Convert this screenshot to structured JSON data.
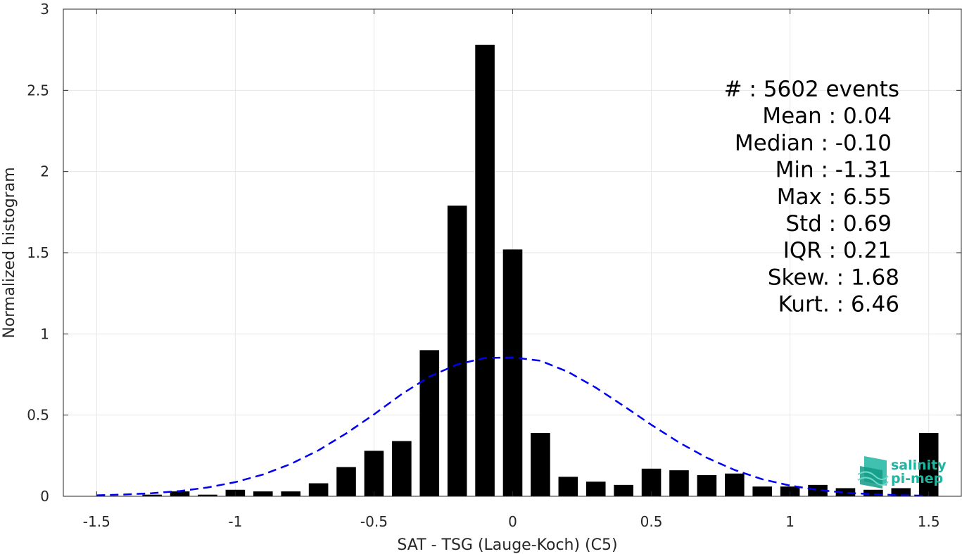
{
  "chart_data": {
    "type": "bar",
    "title": "",
    "xlabel": "SAT - TSG (Lauge-Koch) (C5)",
    "ylabel": "Normalized histogram",
    "xlim": [
      -1.62,
      1.62
    ],
    "ylim": [
      0,
      3
    ],
    "grid": true,
    "xticks": [
      -1.5,
      -1,
      -0.5,
      0,
      0.5,
      1,
      1.5
    ],
    "xtick_labels": [
      "-1.5",
      "-1",
      "-0.5",
      "0",
      "0.5",
      "1",
      "1.5"
    ],
    "yticks": [
      0,
      0.5,
      1,
      1.5,
      2,
      2.5,
      3
    ],
    "ytick_labels": [
      "0",
      "0.5",
      "1",
      "1.5",
      "2",
      "2.5",
      "3"
    ],
    "bar_width": 0.07,
    "bar_color": "#000000",
    "bins": [
      {
        "x": -1.3,
        "y": 0.01
      },
      {
        "x": -1.2,
        "y": 0.03
      },
      {
        "x": -1.1,
        "y": 0.01
      },
      {
        "x": -1.0,
        "y": 0.04
      },
      {
        "x": -0.9,
        "y": 0.03
      },
      {
        "x": -0.8,
        "y": 0.03
      },
      {
        "x": -0.7,
        "y": 0.08
      },
      {
        "x": -0.6,
        "y": 0.18
      },
      {
        "x": -0.5,
        "y": 0.28
      },
      {
        "x": -0.4,
        "y": 0.34
      },
      {
        "x": -0.3,
        "y": 0.9
      },
      {
        "x": -0.2,
        "y": 1.79
      },
      {
        "x": -0.1,
        "y": 2.78
      },
      {
        "x": 0.0,
        "y": 1.52
      },
      {
        "x": 0.1,
        "y": 0.39
      },
      {
        "x": 0.2,
        "y": 0.12
      },
      {
        "x": 0.3,
        "y": 0.09
      },
      {
        "x": 0.4,
        "y": 0.07
      },
      {
        "x": 0.5,
        "y": 0.17
      },
      {
        "x": 0.6,
        "y": 0.16
      },
      {
        "x": 0.7,
        "y": 0.13
      },
      {
        "x": 0.8,
        "y": 0.14
      },
      {
        "x": 0.9,
        "y": 0.06
      },
      {
        "x": 1.0,
        "y": 0.06
      },
      {
        "x": 1.1,
        "y": 0.07
      },
      {
        "x": 1.2,
        "y": 0.05
      },
      {
        "x": 1.3,
        "y": 0.04
      },
      {
        "x": 1.4,
        "y": 0.05
      },
      {
        "x": 1.5,
        "y": 0.39
      }
    ],
    "fit_curve": {
      "style": "dashed",
      "color": "#0000ee",
      "points": [
        [
          -1.5,
          0.006
        ],
        [
          -1.4,
          0.011
        ],
        [
          -1.3,
          0.019
        ],
        [
          -1.2,
          0.032
        ],
        [
          -1.1,
          0.054
        ],
        [
          -1.0,
          0.087
        ],
        [
          -0.9,
          0.134
        ],
        [
          -0.8,
          0.199
        ],
        [
          -0.7,
          0.283
        ],
        [
          -0.6,
          0.387
        ],
        [
          -0.5,
          0.504
        ],
        [
          -0.4,
          0.629
        ],
        [
          -0.3,
          0.737
        ],
        [
          -0.2,
          0.812
        ],
        [
          -0.1,
          0.852
        ],
        [
          0.0,
          0.855
        ],
        [
          0.1,
          0.835
        ],
        [
          0.2,
          0.766
        ],
        [
          0.3,
          0.669
        ],
        [
          0.4,
          0.556
        ],
        [
          0.5,
          0.44
        ],
        [
          0.6,
          0.331
        ],
        [
          0.7,
          0.237
        ],
        [
          0.8,
          0.162
        ],
        [
          0.9,
          0.105
        ],
        [
          1.0,
          0.066
        ],
        [
          1.1,
          0.039
        ],
        [
          1.2,
          0.022
        ],
        [
          1.3,
          0.012
        ],
        [
          1.4,
          0.006
        ],
        [
          1.5,
          0.003
        ]
      ]
    },
    "stats": [
      {
        "label": "#  : 5602 events"
      },
      {
        "label": "Mean : 0.04"
      },
      {
        "label": "Median : -0.10"
      },
      {
        "label": "Min : -1.31"
      },
      {
        "label": "Max : 6.55"
      },
      {
        "label": "Std : 0.69"
      },
      {
        "label": "IQR : 0.21"
      },
      {
        "label": "Skew. : 1.68"
      },
      {
        "label": "Kurt. : 6.46"
      }
    ]
  },
  "logo": {
    "line1": "salinity",
    "line2": "pi-mep",
    "color": "#1fb5a0",
    "icon": "waves-logo-icon"
  }
}
